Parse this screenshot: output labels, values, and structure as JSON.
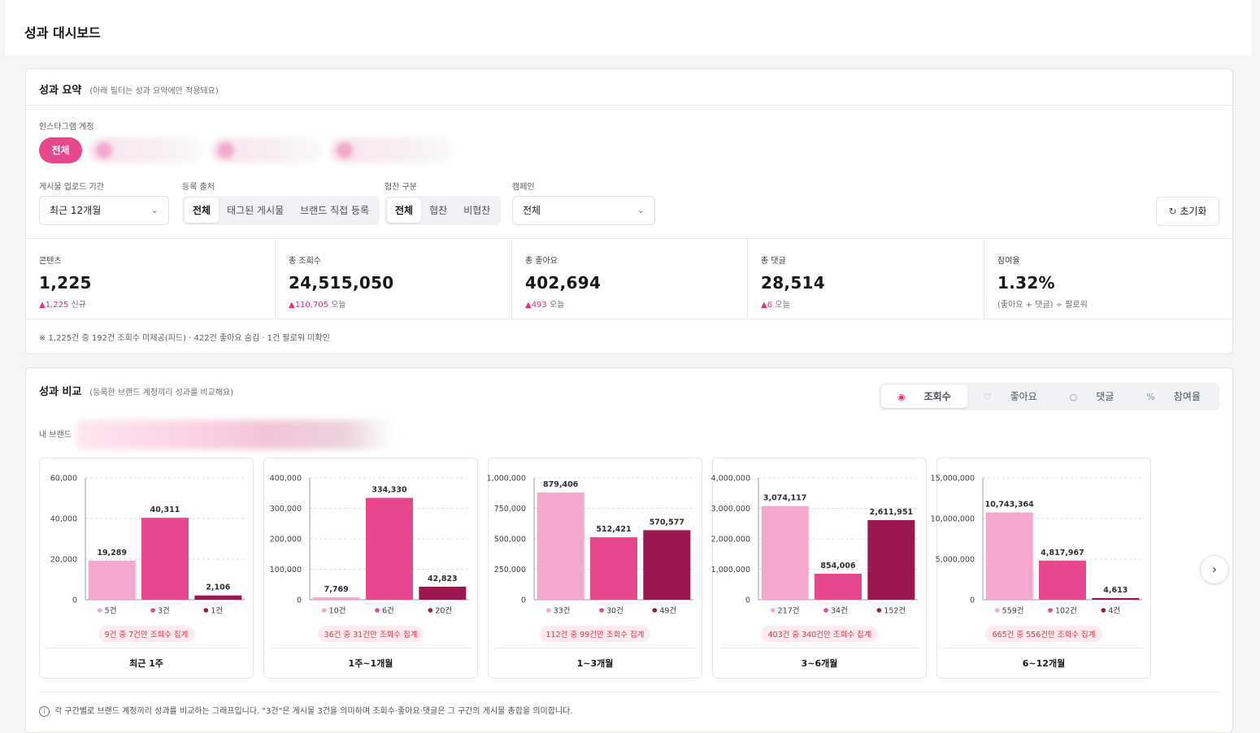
{
  "page_title": "성과 대시보드",
  "summary": {
    "title": "성과 요약",
    "subtitle": "(아래 필터는 성과 요약에만 적용돼요)",
    "account_label": "인스타그램 계정",
    "account_all": "전체",
    "period_label": "게시물 업로드 기간",
    "period_value": "최근 12개월",
    "source_label": "등록 출처",
    "source_options": [
      "전체",
      "태그된 게시물",
      "브랜드 직접 등록"
    ],
    "collab_label": "협찬 구분",
    "collab_options": [
      "전체",
      "협찬",
      "비협찬"
    ],
    "campaign_label": "캠페인",
    "campaign_value": "전체",
    "reset_label": "초기화",
    "stats": [
      {
        "label": "콘텐츠",
        "value": "1,225",
        "delta": "▲1,225",
        "delta_note": "신규"
      },
      {
        "label": "총 조회수",
        "value": "24,515,050",
        "delta": "▲110,705",
        "delta_note": "오늘"
      },
      {
        "label": "총 좋아요",
        "value": "402,694",
        "delta": "▲493",
        "delta_note": "오늘"
      },
      {
        "label": "총 댓글",
        "value": "28,514",
        "delta": "▲6",
        "delta_note": "오늘"
      },
      {
        "label": "참여율",
        "value": "1.32%",
        "delta": "",
        "delta_note": "(좋아요 + 댓글) ÷ 팔로워"
      }
    ],
    "footnote": "※ 1,225건 중 192건 조회수 미제공(피드) · 422건 좋아요 숨김 · 1건 팔로워 미확인"
  },
  "compare": {
    "title": "성과 비교",
    "subtitle": "(등록한 브랜드 계정끼리 성과를 비교해요)",
    "brand_label": "내 브랜드",
    "metrics": [
      "조회수",
      "좋아요",
      "댓글",
      "참여율"
    ],
    "info": "각 구간별로 브랜드 계정끼리 성과를 비교하는 그래프입니다. \"3건\"은 게시물 3건을 의미하며 조회수·좋아요·댓글은 그 구간의 게시물 총합을 의미합니다."
  },
  "colors": {
    "series": [
      "#f7a8d1",
      "#e8478d",
      "#9c1750"
    ],
    "accent": "#e8478d"
  },
  "chart_data": [
    {
      "type": "bar",
      "title": "최근 1주",
      "y_ticks": [
        "0",
        "20,000",
        "40,000",
        "60,000"
      ],
      "ylim": [
        0,
        60000
      ],
      "values": [
        19289,
        40311,
        2106
      ],
      "value_labels": [
        "19,289",
        "40,311",
        "2,106"
      ],
      "categories": [
        "5건",
        "3건",
        "1건"
      ],
      "note": "9건 중 7건만 조회수 집계"
    },
    {
      "type": "bar",
      "title": "1주~1개월",
      "y_ticks": [
        "0",
        "100,000",
        "200,000",
        "300,000",
        "400,000"
      ],
      "ylim": [
        0,
        400000
      ],
      "values": [
        7769,
        334330,
        42823
      ],
      "value_labels": [
        "7,769",
        "334,330",
        "42,823"
      ],
      "categories": [
        "10건",
        "6건",
        "20건"
      ],
      "note": "36건 중 31건만 조회수 집계"
    },
    {
      "type": "bar",
      "title": "1~3개월",
      "y_ticks": [
        "0",
        "250,000",
        "500,000",
        "750,000",
        "1,000,000"
      ],
      "ylim": [
        0,
        1000000
      ],
      "values": [
        879406,
        512421,
        570577
      ],
      "value_labels": [
        "879,406",
        "512,421",
        "570,577"
      ],
      "categories": [
        "33건",
        "30건",
        "49건"
      ],
      "note": "112건 중 99건만 조회수 집계"
    },
    {
      "type": "bar",
      "title": "3~6개월",
      "y_ticks": [
        "0",
        "1,000,000",
        "2,000,000",
        "3,000,000",
        "4,000,000"
      ],
      "ylim": [
        0,
        4000000
      ],
      "values": [
        3074117,
        854006,
        2611951
      ],
      "value_labels": [
        "3,074,117",
        "854,006",
        "2,611,951"
      ],
      "categories": [
        "217건",
        "34건",
        "152건"
      ],
      "note": "403건 중 340건만 조회수 집계"
    },
    {
      "type": "bar",
      "title": "6~12개월",
      "y_ticks": [
        "0",
        "5,000,000",
        "10,000,000",
        "15,000,000"
      ],
      "ylim": [
        0,
        15000000
      ],
      "values": [
        10743364,
        4817967,
        4613
      ],
      "value_labels": [
        "10,743,364",
        "4,817,967",
        "4,613"
      ],
      "categories": [
        "559건",
        "102건",
        "4건"
      ],
      "note": "665건 중 556건만 조회수 집계"
    }
  ]
}
